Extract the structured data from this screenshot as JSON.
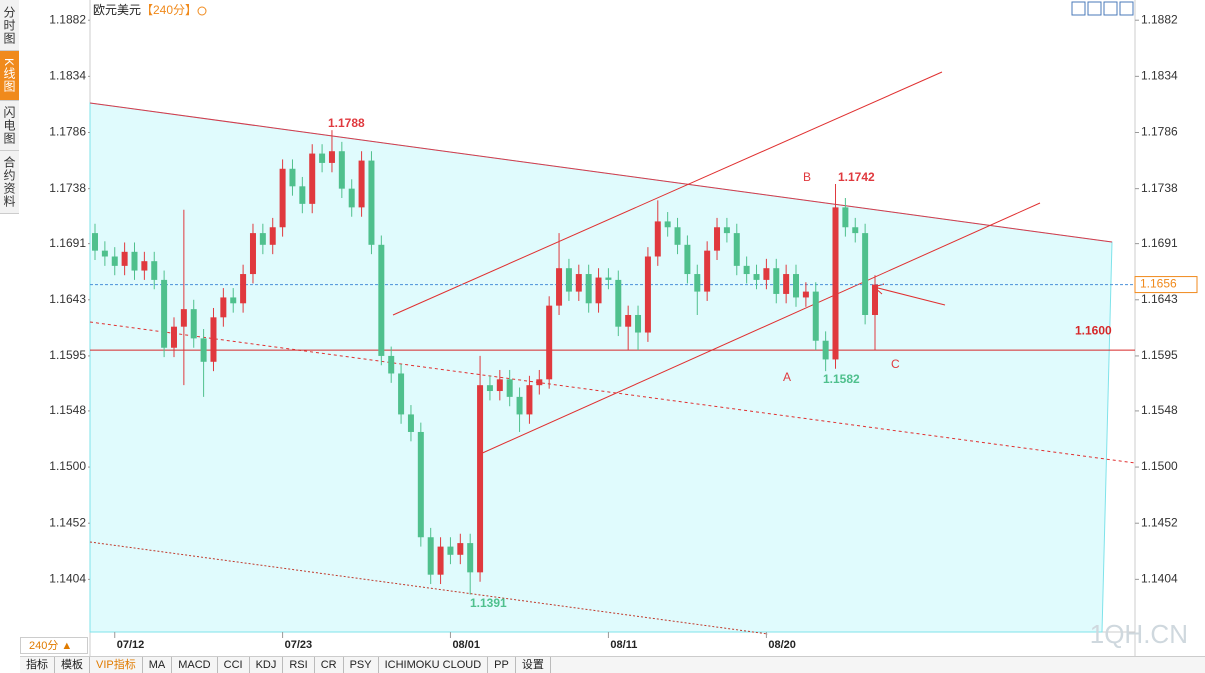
{
  "ui": {
    "symbol": "欧元美元",
    "period": "【240分】",
    "side_tabs": [
      "分时图",
      "K线图",
      "闪电图",
      "合约资料"
    ],
    "period_button": "240分 ▲",
    "toolbar": [
      "指标",
      "模板",
      "VIP指标",
      "MA",
      "MACD",
      "CCI",
      "KDJ",
      "RSI",
      "CR",
      "PSY",
      "ICHIMOKU CLOUD",
      "PP",
      "设置"
    ],
    "watermark": "1QH.CN"
  },
  "chart_data": {
    "type": "candlestick",
    "up_color": "#e0393e",
    "down_color": "#4fc08d",
    "categories": [
      null,
      null,
      "07/12",
      null,
      null,
      null,
      null,
      null,
      null,
      null,
      null,
      null,
      null,
      null,
      null,
      null,
      null,
      null,
      null,
      "07/23",
      null,
      null,
      null,
      null,
      null,
      null,
      null,
      null,
      null,
      null,
      null,
      null,
      null,
      null,
      null,
      null,
      "08/01",
      null,
      null,
      null,
      null,
      null,
      null,
      null,
      null,
      null,
      null,
      null,
      null,
      null,
      null,
      null,
      "08/11",
      null,
      null,
      null,
      null,
      null,
      null,
      null,
      null,
      null,
      null,
      null,
      null,
      null,
      null,
      null,
      "08/20",
      null,
      null,
      null,
      null,
      null,
      null,
      null,
      null,
      null,
      null,
      null
    ],
    "open": [
      1.17,
      1.1685,
      1.168,
      1.1672,
      1.1684,
      1.1668,
      1.1676,
      1.166,
      1.1602,
      1.162,
      1.1635,
      1.161,
      1.159,
      1.1628,
      1.1645,
      1.164,
      1.1665,
      1.17,
      1.169,
      1.1705,
      1.1755,
      1.174,
      1.1725,
      1.1768,
      1.176,
      1.177,
      1.1738,
      1.1722,
      1.1762,
      1.169,
      1.1595,
      1.158,
      1.1545,
      1.153,
      1.144,
      1.1408,
      1.1432,
      1.1425,
      1.1435,
      1.141,
      1.157,
      1.1565,
      1.1575,
      1.156,
      1.1545,
      1.157,
      1.1575,
      1.1638,
      1.167,
      1.165,
      1.1665,
      1.164,
      1.1662,
      1.166,
      1.162,
      1.163,
      1.1615,
      1.168,
      1.171,
      1.1705,
      1.169,
      1.1665,
      1.165,
      1.1685,
      1.1705,
      1.17,
      1.1672,
      1.1665,
      1.166,
      1.167,
      1.1648,
      1.1665,
      1.1645,
      1.165,
      1.1608,
      1.1592,
      1.1722,
      1.1705,
      1.17,
      1.163
    ],
    "high": [
      1.1708,
      1.1693,
      1.1688,
      1.1692,
      1.1692,
      1.1684,
      1.1684,
      1.1668,
      1.1628,
      1.172,
      1.1643,
      1.1618,
      1.1636,
      1.1653,
      1.1653,
      1.1673,
      1.1708,
      1.1708,
      1.1713,
      1.1763,
      1.1763,
      1.1748,
      1.1776,
      1.1776,
      1.1788,
      1.1778,
      1.1746,
      1.177,
      1.177,
      1.1698,
      1.1603,
      1.1588,
      1.1553,
      1.1538,
      1.1448,
      1.144,
      1.144,
      1.1443,
      1.1443,
      1.1595,
      1.1578,
      1.1583,
      1.1583,
      1.1568,
      1.1578,
      1.1583,
      1.1646,
      1.17,
      1.1678,
      1.1673,
      1.1673,
      1.167,
      1.167,
      1.1668,
      1.1638,
      1.1638,
      1.1688,
      1.1728,
      1.1718,
      1.1713,
      1.1698,
      1.1673,
      1.1693,
      1.1713,
      1.1713,
      1.1708,
      1.168,
      1.1673,
      1.1678,
      1.1678,
      1.1673,
      1.1673,
      1.1658,
      1.1658,
      1.1616,
      1.1742,
      1.173,
      1.1713,
      1.1708,
      1.1664
    ],
    "low": [
      1.1677,
      1.1672,
      1.1664,
      1.1664,
      1.166,
      1.166,
      1.1652,
      1.1594,
      1.1594,
      1.157,
      1.1602,
      1.156,
      1.1582,
      1.162,
      1.1632,
      1.1632,
      1.1657,
      1.1682,
      1.1682,
      1.1697,
      1.1732,
      1.1717,
      1.1717,
      1.1752,
      1.1752,
      1.173,
      1.1714,
      1.1714,
      1.1682,
      1.1587,
      1.1572,
      1.1537,
      1.1522,
      1.1432,
      1.14,
      1.14,
      1.1417,
      1.1417,
      1.1391,
      1.1402,
      1.1557,
      1.1557,
      1.1552,
      1.153,
      1.1537,
      1.1562,
      1.1567,
      1.163,
      1.1642,
      1.1642,
      1.1632,
      1.1632,
      1.1652,
      1.1612,
      1.16,
      1.16,
      1.1607,
      1.1672,
      1.1697,
      1.1682,
      1.1657,
      1.163,
      1.1642,
      1.1677,
      1.1692,
      1.1664,
      1.1657,
      1.1652,
      1.1652,
      1.164,
      1.164,
      1.1637,
      1.1637,
      1.16,
      1.1582,
      1.1584,
      1.1697,
      1.1692,
      1.1622,
      1.16
    ],
    "close": [
      1.1685,
      1.168,
      1.1672,
      1.1684,
      1.1668,
      1.1676,
      1.166,
      1.1602,
      1.162,
      1.1635,
      1.161,
      1.159,
      1.1628,
      1.1645,
      1.164,
      1.1665,
      1.17,
      1.169,
      1.1705,
      1.1755,
      1.174,
      1.1725,
      1.1768,
      1.176,
      1.177,
      1.1738,
      1.1722,
      1.1762,
      1.169,
      1.1595,
      1.158,
      1.1545,
      1.153,
      1.144,
      1.1408,
      1.1432,
      1.1425,
      1.1435,
      1.141,
      1.157,
      1.1565,
      1.1575,
      1.156,
      1.1545,
      1.157,
      1.1575,
      1.1638,
      1.167,
      1.165,
      1.1665,
      1.164,
      1.1662,
      1.166,
      1.162,
      1.163,
      1.1615,
      1.168,
      1.171,
      1.1705,
      1.169,
      1.1665,
      1.165,
      1.1685,
      1.1705,
      1.17,
      1.1672,
      1.1665,
      1.166,
      1.167,
      1.1648,
      1.1665,
      1.1645,
      1.165,
      1.1608,
      1.1592,
      1.1722,
      1.1705,
      1.17,
      1.163,
      1.1656
    ],
    "ylim": [
      1.1359,
      1.1895
    ],
    "yticks": [
      1.1882,
      1.1834,
      1.1786,
      1.1738,
      1.1691,
      1.1643,
      1.1595,
      1.1548,
      {
        "value": 1.15,
        "label": "1.1500"
      },
      1.1452,
      1.1404
    ],
    "last_price": 1.1656,
    "hline": {
      "value": 1.16,
      "label": "1.1600"
    },
    "marked_prices": [
      1.1788,
      1.1742,
      1.1582,
      1.1391
    ],
    "annotations": [
      "B",
      "A",
      "C"
    ]
  }
}
